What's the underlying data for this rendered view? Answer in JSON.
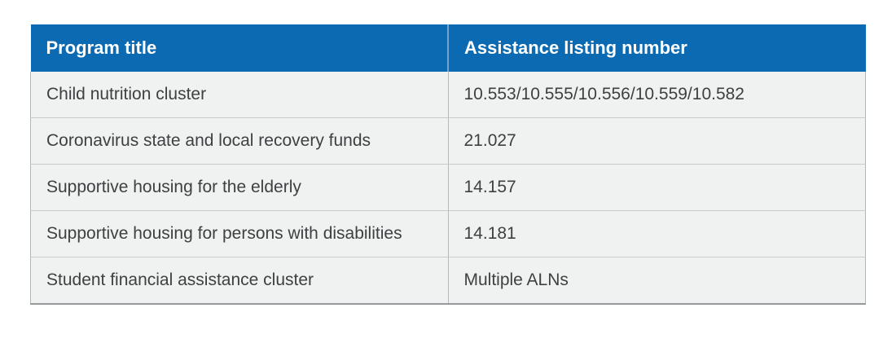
{
  "chart_data": {
    "type": "table",
    "columns": [
      "Program title",
      "Assistance listing number"
    ],
    "rows": [
      [
        "Child nutrition cluster",
        "10.553/10.555/10.556/10.559/10.582"
      ],
      [
        "Coronavirus state and local recovery funds",
        "21.027"
      ],
      [
        "Supportive housing for the elderly",
        "14.157"
      ],
      [
        "Supportive housing for persons with disabilities",
        "14.181"
      ],
      [
        "Student financial assistance cluster",
        "Multiple ALNs"
      ]
    ]
  },
  "colors": {
    "page_bg": "#ffffff",
    "header_bg": "#0b6ab1",
    "header_text": "#ffffff",
    "row_bg": "#f0f1f1",
    "body_text": "#3e4042",
    "row_divider": "#c7c9ca",
    "outer_border": "#96999b",
    "side_border": "#b3b5b6",
    "column_divider": "#b6b8b9",
    "header_divider": "#6fa5d0"
  }
}
